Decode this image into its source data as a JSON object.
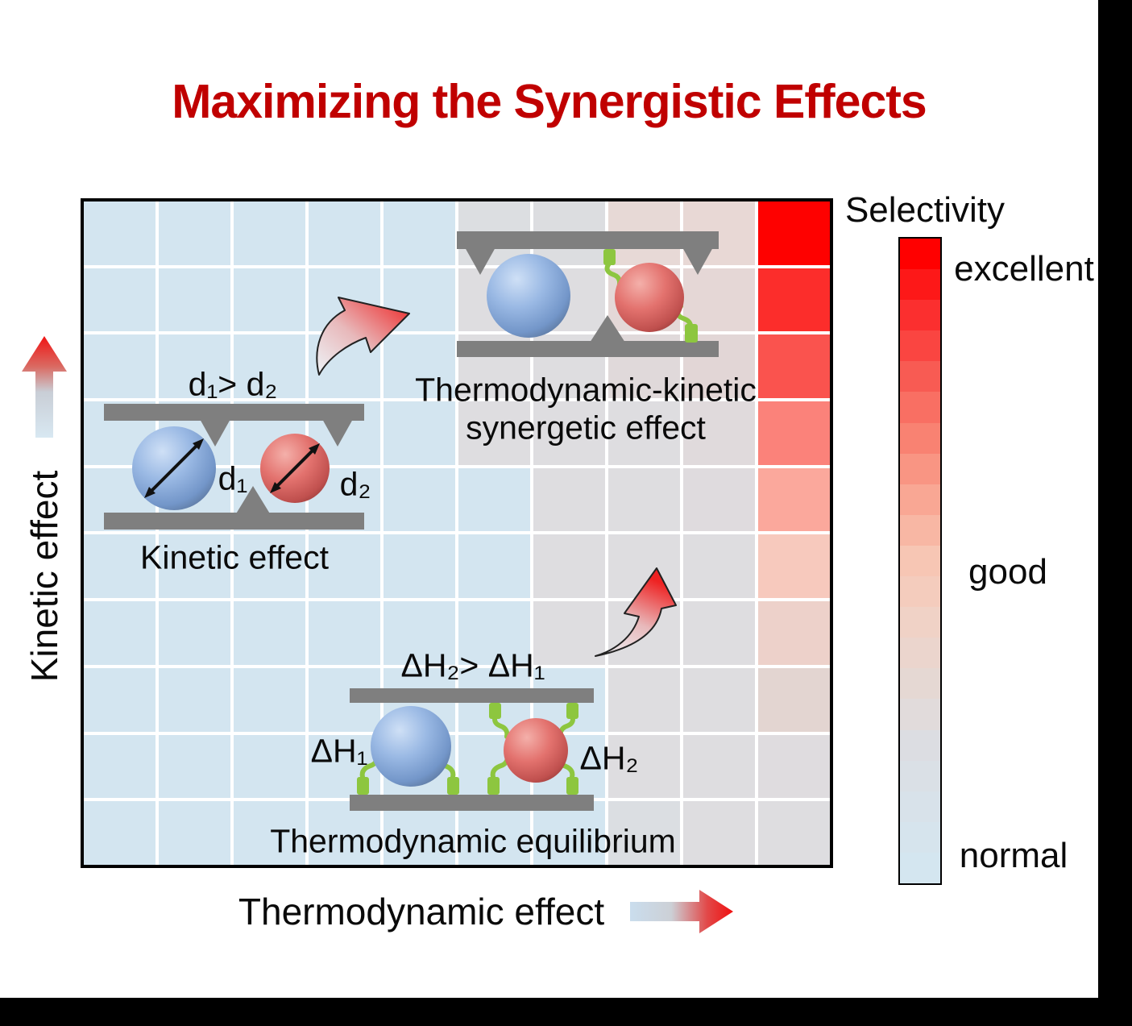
{
  "title": {
    "text": "Maximizing the Synergistic Effects",
    "color": "#c00000"
  },
  "axes": {
    "y_label": "Kinetic effect",
    "x_label": "Thermodynamic effect"
  },
  "illustrations": {
    "kinetic": {
      "inequality": "d₁> d₂",
      "d1": "d₁",
      "d2": "d₂",
      "caption": "Kinetic effect"
    },
    "synergetic": {
      "caption_line1": "Thermodynamic-kinetic",
      "caption_line2": "synergetic effect"
    },
    "equilibrium": {
      "inequality": "ΔH₂> ΔH₁",
      "dh1": "ΔH₁",
      "dh2": "ΔH₂",
      "caption": "Thermodynamic equilibrium"
    }
  },
  "legend": {
    "title": "Selectivity",
    "label_excellent": "excellent",
    "label_good": "good",
    "label_normal": "normal",
    "gradient_anchors": [
      "#ff0000",
      "#fb2f2f",
      "#f85b53",
      "#f98272",
      "#f9a794",
      "#f7c6b4",
      "#f0d2c6",
      "#e5d8d3",
      "#dcdde2",
      "#d8e2ea",
      "#d4e6f0"
    ],
    "bands": 21
  },
  "plot": {
    "grid": {
      "rows": 10,
      "cols": 10,
      "cell_colors": [
        [
          "#d3e5f0",
          "#d3e5f0",
          "#d3e5f0",
          "#d3e5f0",
          "#d3e5f0",
          "#dcdee1",
          "#dcdde0",
          "#e7d9d6",
          "#e8d8d5",
          "#fe0100"
        ],
        [
          "#d3e5f0",
          "#d3e5f0",
          "#d3e5f0",
          "#d3e5f0",
          "#d3e5f0",
          "#dedde0",
          "#dedde0",
          "#e4d8d7",
          "#e5d7d6",
          "#fc2d2b"
        ],
        [
          "#d3e5f0",
          "#d3e5f0",
          "#d3e5f0",
          "#d3e5f0",
          "#d3e5f0",
          "#dedde0",
          "#dedde0",
          "#e0d9da",
          "#e2d6d6",
          "#fa534e"
        ],
        [
          "#d3e5f0",
          "#d3e5f0",
          "#d3e5f0",
          "#d3e5f0",
          "#d3e5f0",
          "#dedde0",
          "#dedde0",
          "#dedde0",
          "#e0dadc",
          "#fb827a"
        ],
        [
          "#d3e5f0",
          "#d3e5f0",
          "#d3e5f0",
          "#d3e5f0",
          "#d3e5f0",
          "#d3e5f0",
          "#dedde0",
          "#dedde0",
          "#dfdbde",
          "#fba89c"
        ],
        [
          "#d3e5f0",
          "#d3e5f0",
          "#d3e5f0",
          "#d3e5f0",
          "#d3e5f0",
          "#d3e5f0",
          "#dedde0",
          "#dedde0",
          "#dedde0",
          "#f7c9bd"
        ],
        [
          "#d3e5f0",
          "#d3e5f0",
          "#d3e5f0",
          "#d3e5f0",
          "#d3e5f0",
          "#d3e5f0",
          "#dedde0",
          "#dedde0",
          "#dedde0",
          "#edd1ca"
        ],
        [
          "#d3e5f0",
          "#d3e5f0",
          "#d3e5f0",
          "#d3e5f0",
          "#d3e5f0",
          "#d3e5f0",
          "#d3e5f0",
          "#dedde0",
          "#dedde0",
          "#e3d5d1"
        ],
        [
          "#d3e5f0",
          "#d3e5f0",
          "#d3e5f0",
          "#d3e5f0",
          "#d3e5f0",
          "#d3e5f0",
          "#d3e5f0",
          "#dedde0",
          "#dedde0",
          "#dfdcdf"
        ],
        [
          "#d3e5f0",
          "#d3e5f0",
          "#d3e5f0",
          "#d3e5f0",
          "#d3e5f0",
          "#d3e5f0",
          "#d3e5f0",
          "#dbdee2",
          "#dedde0",
          "#dedde0"
        ]
      ]
    }
  },
  "colors": {
    "cell_blue": "#d3e5f0",
    "cell_gray": "#dedde0",
    "bar_gray": "#7f7f7f",
    "connector_green": "#8dc63f",
    "sphere_blue": "#9ab9e4",
    "sphere_red": "#e3726e",
    "arrow_red": "#ee1c1c",
    "arrow_pale_blue": "#d6e6f0"
  }
}
